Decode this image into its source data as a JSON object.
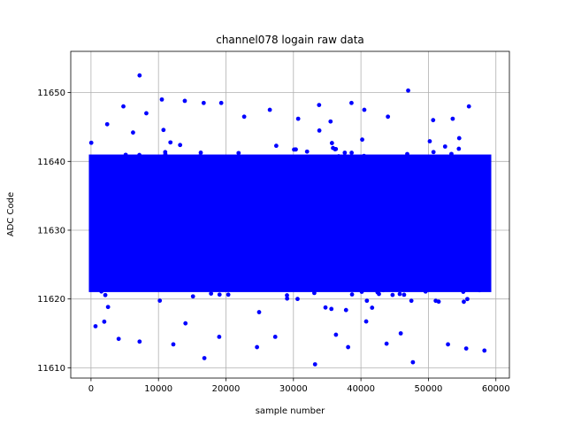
{
  "chart_data": {
    "type": "scatter",
    "title": "channel078 logain raw data",
    "xlabel": "sample number",
    "ylabel": "ADC Code",
    "xlim": [
      -3000,
      62000
    ],
    "ylim": [
      11608.5,
      11656
    ],
    "x_ticks": [
      0,
      10000,
      20000,
      30000,
      40000,
      50000,
      60000
    ],
    "y_ticks": [
      11610,
      11620,
      11630,
      11640,
      11650
    ],
    "grid": true,
    "marker_color": "#0000ff",
    "n_samples": 59000,
    "mean": 11631,
    "dense_band": [
      11621,
      11641
    ],
    "outliers": [
      [
        7200,
        11652.5
      ],
      [
        47000,
        11650.3
      ],
      [
        10500,
        11649
      ],
      [
        38600,
        11648.5
      ],
      [
        13900,
        11648.8
      ],
      [
        4800,
        11648
      ],
      [
        16700,
        11648.5
      ],
      [
        19300,
        11648.5
      ],
      [
        33800,
        11648.2
      ],
      [
        56000,
        11648
      ],
      [
        26500,
        11647.5
      ],
      [
        40500,
        11647.5
      ],
      [
        8200,
        11647
      ],
      [
        22700,
        11646.5
      ],
      [
        44000,
        11646.5
      ],
      [
        50700,
        11646
      ],
      [
        30700,
        11646.2
      ],
      [
        35500,
        11645.8
      ],
      [
        53600,
        11646.2
      ],
      [
        2400,
        11645.4
      ],
      [
        16800,
        11611.4
      ],
      [
        33200,
        11610.5
      ],
      [
        47700,
        11610.8
      ],
      [
        58300,
        11612.5
      ],
      [
        12200,
        11613.4
      ],
      [
        24600,
        11613
      ],
      [
        55600,
        11612.8
      ],
      [
        38100,
        11613
      ],
      [
        52900,
        11613.4
      ],
      [
        7200,
        11613.8
      ],
      [
        43800,
        11613.5
      ],
      [
        4100,
        11614.2
      ],
      [
        27300,
        11614.5
      ],
      [
        36300,
        11614.8
      ],
      [
        19000,
        11614.5
      ],
      [
        45900,
        11615
      ]
    ]
  }
}
